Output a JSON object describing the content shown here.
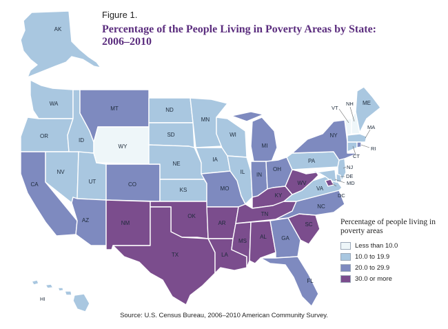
{
  "figure_label": "Figure 1.",
  "title": "Percentage of the People Living in Poverty Areas by State: 2006–2010",
  "legend": {
    "title": "Percentage of people living in poverty areas",
    "items": [
      {
        "key": "c1",
        "label": "Less than 10.0",
        "color": "#eef6f9"
      },
      {
        "key": "c2",
        "label": "10.0 to 19.9",
        "color": "#a9c7e0"
      },
      {
        "key": "c3",
        "label": "20.0 to 29.9",
        "color": "#7e8abf"
      },
      {
        "key": "c4",
        "label": "30.0 or more",
        "color": "#7b4d8d"
      }
    ]
  },
  "source": "Source: U.S. Census Bureau, 2006–2010 American Community Survey.",
  "states": [
    {
      "abbr": "AK",
      "class": "c2"
    },
    {
      "abbr": "HI",
      "class": "c2"
    },
    {
      "abbr": "WA",
      "class": "c2"
    },
    {
      "abbr": "OR",
      "class": "c2"
    },
    {
      "abbr": "CA",
      "class": "c3"
    },
    {
      "abbr": "ID",
      "class": "c2"
    },
    {
      "abbr": "NV",
      "class": "c2"
    },
    {
      "abbr": "UT",
      "class": "c2"
    },
    {
      "abbr": "AZ",
      "class": "c3"
    },
    {
      "abbr": "MT",
      "class": "c3"
    },
    {
      "abbr": "WY",
      "class": "c1"
    },
    {
      "abbr": "CO",
      "class": "c3"
    },
    {
      "abbr": "NM",
      "class": "c4"
    },
    {
      "abbr": "ND",
      "class": "c2"
    },
    {
      "abbr": "SD",
      "class": "c2"
    },
    {
      "abbr": "NE",
      "class": "c2"
    },
    {
      "abbr": "KS",
      "class": "c2"
    },
    {
      "abbr": "OK",
      "class": "c4"
    },
    {
      "abbr": "TX",
      "class": "c4"
    },
    {
      "abbr": "MN",
      "class": "c2"
    },
    {
      "abbr": "IA",
      "class": "c2"
    },
    {
      "abbr": "MO",
      "class": "c3"
    },
    {
      "abbr": "AR",
      "class": "c4"
    },
    {
      "abbr": "LA",
      "class": "c4"
    },
    {
      "abbr": "WI",
      "class": "c2"
    },
    {
      "abbr": "IL",
      "class": "c2"
    },
    {
      "abbr": "MS",
      "class": "c4"
    },
    {
      "abbr": "MI",
      "class": "c3"
    },
    {
      "abbr": "IN",
      "class": "c3"
    },
    {
      "abbr": "OH",
      "class": "c3"
    },
    {
      "abbr": "KY",
      "class": "c4"
    },
    {
      "abbr": "TN",
      "class": "c4"
    },
    {
      "abbr": "AL",
      "class": "c4"
    },
    {
      "abbr": "GA",
      "class": "c3"
    },
    {
      "abbr": "FL",
      "class": "c3"
    },
    {
      "abbr": "SC",
      "class": "c4"
    },
    {
      "abbr": "NC",
      "class": "c3"
    },
    {
      "abbr": "VA",
      "class": "c2"
    },
    {
      "abbr": "WV",
      "class": "c4"
    },
    {
      "abbr": "PA",
      "class": "c2"
    },
    {
      "abbr": "NY",
      "class": "c3"
    },
    {
      "abbr": "VT",
      "class": "c1"
    },
    {
      "abbr": "NH",
      "class": "c1"
    },
    {
      "abbr": "ME",
      "class": "c2"
    },
    {
      "abbr": "MA",
      "class": "c2"
    },
    {
      "abbr": "RI",
      "class": "c3"
    },
    {
      "abbr": "CT",
      "class": "c2"
    },
    {
      "abbr": "NJ",
      "class": "c2"
    },
    {
      "abbr": "DE",
      "class": "c2"
    },
    {
      "abbr": "MD",
      "class": "c2"
    },
    {
      "abbr": "DC",
      "class": "c4"
    }
  ]
}
